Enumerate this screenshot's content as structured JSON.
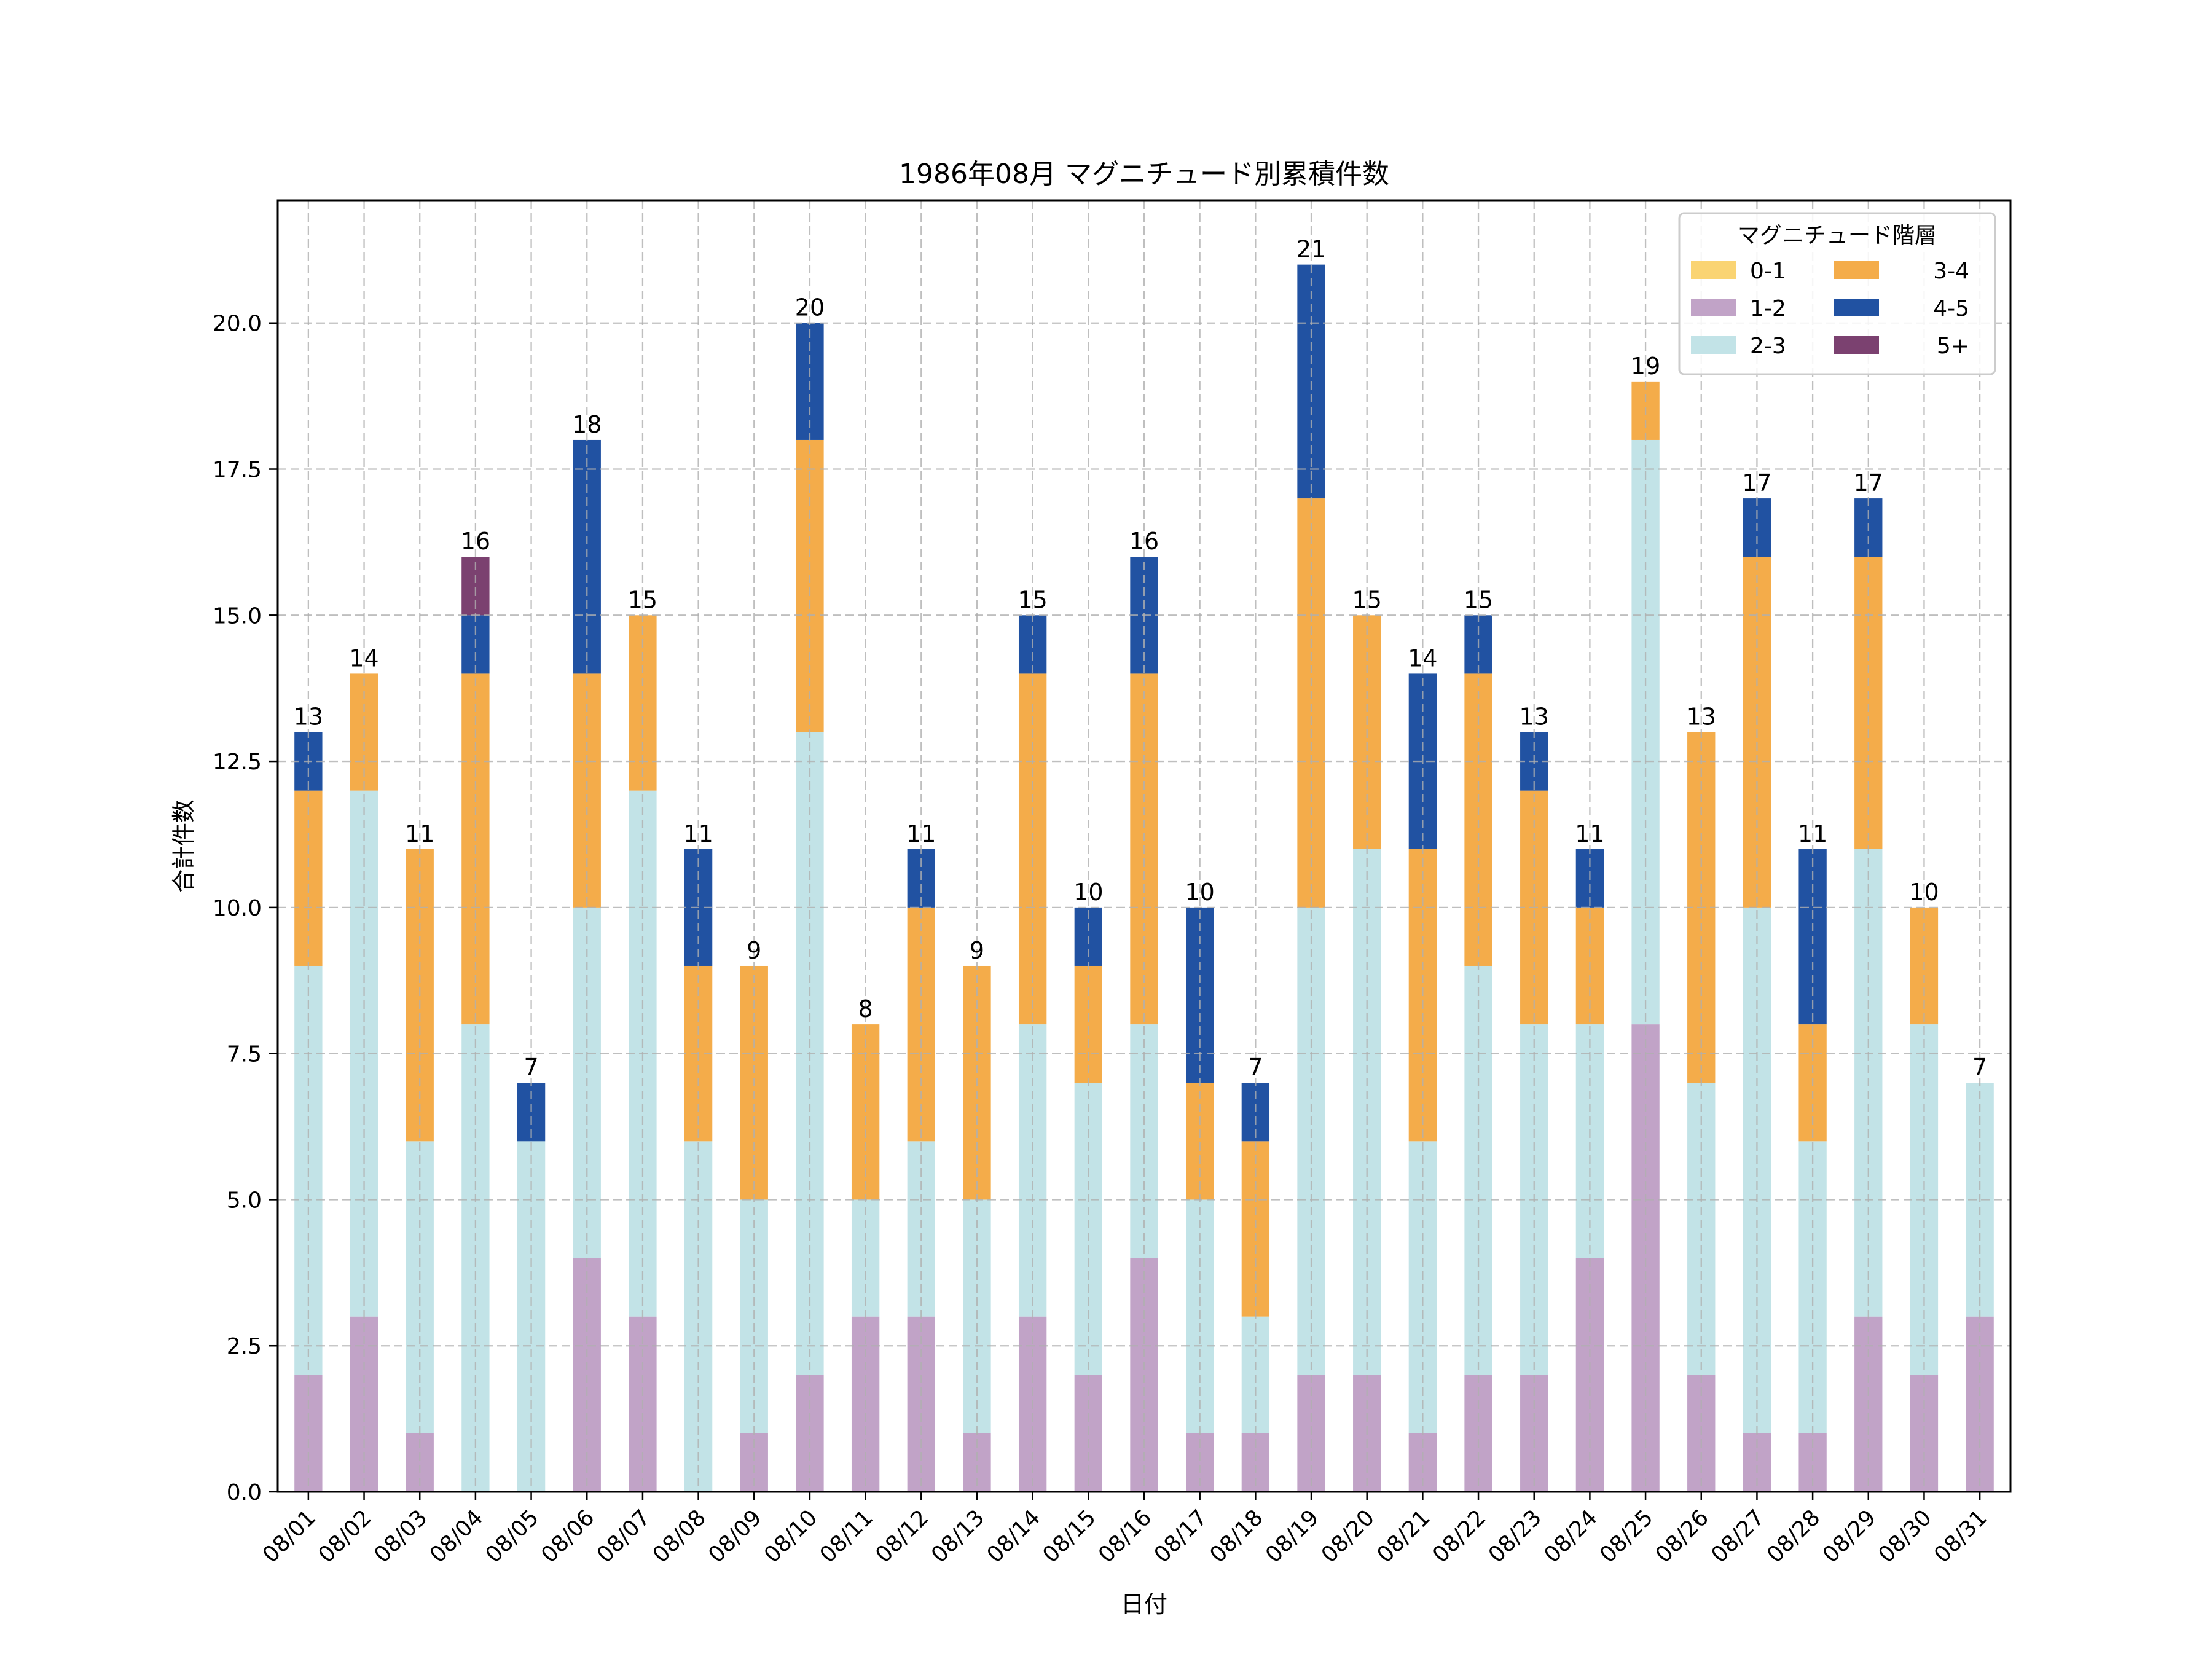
{
  "chart_data": {
    "type": "bar",
    "stacked": true,
    "title": "1986年08月 マグニチュード別累積件数",
    "xlabel": "日付",
    "ylabel": "合計件数",
    "ylim": [
      0,
      22.1
    ],
    "yticks": [
      "0.0",
      "2.5",
      "5.0",
      "7.5",
      "10.0",
      "12.5",
      "15.0",
      "17.5",
      "20.0"
    ],
    "grid": true,
    "legend": {
      "title": "マグニチュード階層",
      "placement": "top-right",
      "columns": 2
    },
    "categories": [
      "08/01",
      "08/02",
      "08/03",
      "08/04",
      "08/05",
      "08/06",
      "08/07",
      "08/08",
      "08/09",
      "08/10",
      "08/11",
      "08/12",
      "08/13",
      "08/14",
      "08/15",
      "08/16",
      "08/17",
      "08/18",
      "08/19",
      "08/20",
      "08/21",
      "08/22",
      "08/23",
      "08/24",
      "08/25",
      "08/26",
      "08/27",
      "08/28",
      "08/29",
      "08/30",
      "08/31"
    ],
    "series": [
      {
        "name": "0-1",
        "color": "#FAD473",
        "values": [
          0,
          0,
          0,
          0,
          0,
          0,
          0,
          0,
          0,
          0,
          0,
          0,
          0,
          0,
          0,
          0,
          0,
          0,
          0,
          0,
          0,
          0,
          0,
          0,
          0,
          0,
          0,
          0,
          0,
          0,
          0
        ]
      },
      {
        "name": "1-2",
        "color": "#C1A3C7",
        "values": [
          2,
          3,
          1,
          0,
          0,
          4,
          3,
          0,
          1,
          2,
          3,
          3,
          1,
          3,
          2,
          4,
          1,
          1,
          2,
          2,
          1,
          2,
          2,
          4,
          8,
          2,
          1,
          1,
          3,
          2,
          3
        ]
      },
      {
        "name": "2-3",
        "color": "#C2E3E7",
        "values": [
          7,
          9,
          5,
          8,
          6,
          6,
          9,
          6,
          4,
          11,
          2,
          3,
          4,
          5,
          5,
          4,
          4,
          2,
          8,
          9,
          5,
          7,
          6,
          4,
          10,
          5,
          9,
          5,
          8,
          6,
          4
        ]
      },
      {
        "name": "3-4",
        "color": "#F4AC4A",
        "values": [
          3,
          2,
          5,
          6,
          0,
          4,
          3,
          3,
          4,
          5,
          3,
          4,
          4,
          6,
          2,
          6,
          2,
          3,
          7,
          4,
          5,
          5,
          4,
          2,
          1,
          6,
          6,
          2,
          5,
          2,
          0
        ]
      },
      {
        "name": "4-5",
        "color": "#2152A2",
        "values": [
          1,
          0,
          0,
          1,
          1,
          4,
          0,
          2,
          0,
          2,
          0,
          1,
          0,
          1,
          1,
          2,
          3,
          1,
          4,
          0,
          3,
          1,
          1,
          1,
          0,
          0,
          1,
          3,
          1,
          0,
          0
        ]
      },
      {
        "name": "5+",
        "color": "#7B4170",
        "values": [
          0,
          0,
          0,
          1,
          0,
          0,
          0,
          0,
          0,
          0,
          0,
          0,
          0,
          0,
          0,
          0,
          0,
          0,
          0,
          0,
          0,
          0,
          0,
          0,
          0,
          0,
          0,
          0,
          0,
          0,
          0
        ]
      }
    ],
    "totals": [
      "13",
      "14",
      "11",
      "16",
      "7",
      "18",
      "15",
      "11",
      "9",
      "20",
      "8",
      "11",
      "9",
      "15",
      "10",
      "16",
      "10",
      "7",
      "21",
      "15",
      "14",
      "15",
      "13",
      "11",
      "19",
      "13",
      "17",
      "11",
      "17",
      "10",
      "7"
    ]
  }
}
